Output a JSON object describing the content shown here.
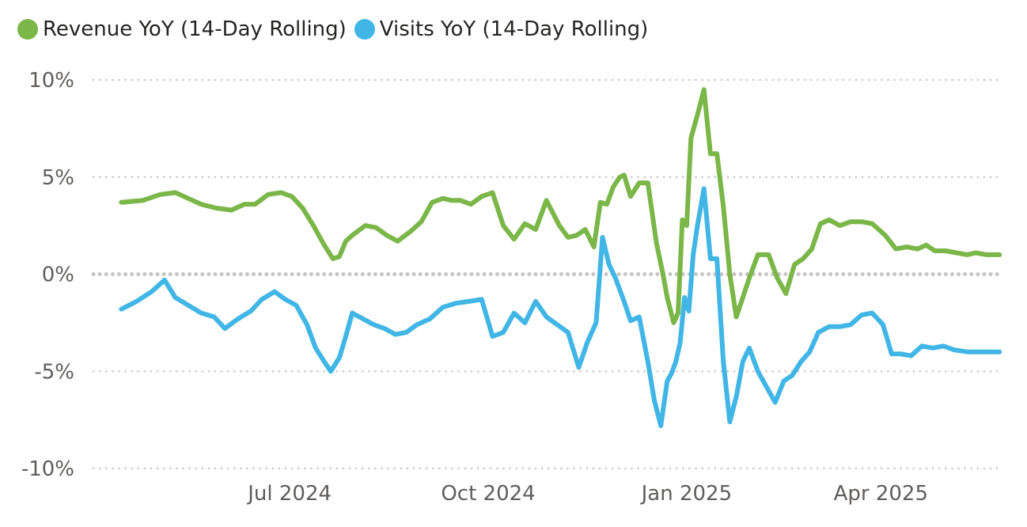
{
  "chart_data": {
    "type": "line",
    "title": "",
    "xlabel": "",
    "ylabel": "",
    "ylim": [
      -10,
      10
    ],
    "yticks": [
      10,
      5,
      0,
      -5,
      -10
    ],
    "ytick_labels": [
      "10%",
      "5%",
      "0%",
      "-5%",
      "-10%"
    ],
    "xlim": [
      "2024-04-01",
      "2025-05-27"
    ],
    "xticks": [
      "2024-07-01",
      "2024-10-01",
      "2025-01-01",
      "2025-04-01"
    ],
    "xtick_labels": [
      "Jul 2024",
      "Oct 2024",
      "Jan 2025",
      "Apr 2025"
    ],
    "grid": true,
    "legend_position": "top-left",
    "series": [
      {
        "name": "Revenue YoY (14-Day Rolling)",
        "color": "#7AB648",
        "x": [
          "2024-04-14",
          "2024-04-24",
          "2024-05-02",
          "2024-05-09",
          "2024-05-15",
          "2024-05-21",
          "2024-05-28",
          "2024-06-04",
          "2024-06-10",
          "2024-06-15",
          "2024-06-21",
          "2024-06-27",
          "2024-07-02",
          "2024-07-07",
          "2024-07-12",
          "2024-07-17",
          "2024-07-21",
          "2024-07-24",
          "2024-07-27",
          "2024-07-30",
          "2024-08-05",
          "2024-08-10",
          "2024-08-15",
          "2024-08-20",
          "2024-08-26",
          "2024-08-31",
          "2024-09-05",
          "2024-09-10",
          "2024-09-14",
          "2024-09-18",
          "2024-09-23",
          "2024-09-28",
          "2024-10-03",
          "2024-10-08",
          "2024-10-13",
          "2024-10-18",
          "2024-10-23",
          "2024-10-28",
          "2024-11-03",
          "2024-11-07",
          "2024-11-11",
          "2024-11-15",
          "2024-11-19",
          "2024-11-22",
          "2024-11-25",
          "2024-11-28",
          "2024-12-01",
          "2024-12-03",
          "2024-12-06",
          "2024-12-10",
          "2024-12-14",
          "2024-12-18",
          "2024-12-21",
          "2024-12-23",
          "2024-12-26",
          "2024-12-28",
          "2024-12-30",
          "2025-01-01",
          "2025-01-03",
          "2025-01-06",
          "2025-01-09",
          "2025-01-12",
          "2025-01-15",
          "2025-01-18",
          "2025-01-21",
          "2025-01-24",
          "2025-01-27",
          "2025-01-30",
          "2025-02-03",
          "2025-02-08",
          "2025-02-12",
          "2025-02-16",
          "2025-02-20",
          "2025-02-24",
          "2025-02-28",
          "2025-03-04",
          "2025-03-08",
          "2025-03-13",
          "2025-03-18",
          "2025-03-23",
          "2025-03-28",
          "2025-04-03",
          "2025-04-08",
          "2025-04-13",
          "2025-04-18",
          "2025-04-22",
          "2025-04-26",
          "2025-05-01",
          "2025-05-06",
          "2025-05-11",
          "2025-05-15",
          "2025-05-20",
          "2025-05-26"
        ],
        "values": [
          3.7,
          3.8,
          4.1,
          4.2,
          3.9,
          3.6,
          3.4,
          3.3,
          3.6,
          3.6,
          4.1,
          4.2,
          4.0,
          3.4,
          2.5,
          1.5,
          0.8,
          0.9,
          1.7,
          2.0,
          2.5,
          2.4,
          2.0,
          1.7,
          2.2,
          2.7,
          3.7,
          3.9,
          3.8,
          3.8,
          3.6,
          4.0,
          4.2,
          2.5,
          1.8,
          2.6,
          2.3,
          3.8,
          2.5,
          1.9,
          2.0,
          2.3,
          1.4,
          3.7,
          3.6,
          4.5,
          5.0,
          5.1,
          4.0,
          4.7,
          4.7,
          1.6,
          0.0,
          -1.2,
          -2.5,
          -2.0,
          2.8,
          2.5,
          7.0,
          8.2,
          9.5,
          6.2,
          6.2,
          3.5,
          0.0,
          -2.2,
          -1.2,
          -0.2,
          1.0,
          1.0,
          -0.2,
          -1.0,
          0.5,
          0.8,
          1.3,
          2.6,
          2.8,
          2.5,
          2.7,
          2.7,
          2.6,
          2.0,
          1.3,
          1.4,
          1.3,
          1.5,
          1.2,
          1.2,
          1.1,
          1.0,
          1.1,
          1.0,
          1.0
        ]
      },
      {
        "name": "Visits YoY (14-Day Rolling)",
        "color": "#41B6E6",
        "x": [
          "2024-04-14",
          "2024-04-21",
          "2024-04-28",
          "2024-05-04",
          "2024-05-09",
          "2024-05-15",
          "2024-05-21",
          "2024-05-27",
          "2024-06-01",
          "2024-06-07",
          "2024-06-13",
          "2024-06-18",
          "2024-06-24",
          "2024-06-29",
          "2024-07-04",
          "2024-07-09",
          "2024-07-13",
          "2024-07-17",
          "2024-07-20",
          "2024-07-24",
          "2024-07-27",
          "2024-07-30",
          "2024-08-04",
          "2024-08-09",
          "2024-08-14",
          "2024-08-19",
          "2024-08-24",
          "2024-08-29",
          "2024-09-04",
          "2024-09-10",
          "2024-09-16",
          "2024-09-22",
          "2024-09-28",
          "2024-10-03",
          "2024-10-08",
          "2024-10-13",
          "2024-10-18",
          "2024-10-23",
          "2024-10-28",
          "2024-11-02",
          "2024-11-07",
          "2024-11-12",
          "2024-11-16",
          "2024-11-20",
          "2024-11-23",
          "2024-11-26",
          "2024-11-29",
          "2024-12-01",
          "2024-12-03",
          "2024-12-06",
          "2024-12-10",
          "2024-12-14",
          "2024-12-17",
          "2024-12-20",
          "2024-12-23",
          "2024-12-25",
          "2024-12-27",
          "2024-12-29",
          "2024-12-31",
          "2025-01-02",
          "2025-01-04",
          "2025-01-06",
          "2025-01-09",
          "2025-01-12",
          "2025-01-15",
          "2025-01-18",
          "2025-01-21",
          "2025-01-24",
          "2025-01-27",
          "2025-01-30",
          "2025-02-03",
          "2025-02-07",
          "2025-02-11",
          "2025-02-15",
          "2025-02-19",
          "2025-02-23",
          "2025-02-27",
          "2025-03-03",
          "2025-03-08",
          "2025-03-13",
          "2025-03-18",
          "2025-03-23",
          "2025-03-28",
          "2025-04-02",
          "2025-04-06",
          "2025-04-10",
          "2025-04-15",
          "2025-04-20",
          "2025-04-25",
          "2025-04-30",
          "2025-05-05",
          "2025-05-11",
          "2025-05-16",
          "2025-05-21",
          "2025-05-26"
        ],
        "values": [
          -1.8,
          -1.4,
          -0.9,
          -0.3,
          -1.2,
          -1.6,
          -2.0,
          -2.2,
          -2.8,
          -2.3,
          -1.9,
          -1.3,
          -0.9,
          -1.3,
          -1.6,
          -2.6,
          -3.8,
          -4.5,
          -5.0,
          -4.3,
          -3.2,
          -2.0,
          -2.3,
          -2.6,
          -2.8,
          -3.1,
          -3.0,
          -2.6,
          -2.3,
          -1.7,
          -1.5,
          -1.4,
          -1.3,
          -3.2,
          -3.0,
          -2.0,
          -2.5,
          -1.4,
          -2.2,
          -2.6,
          -3.0,
          -4.8,
          -3.5,
          -2.5,
          1.9,
          0.5,
          -0.2,
          -0.8,
          -1.4,
          -2.4,
          -2.2,
          -4.5,
          -6.5,
          -7.8,
          -5.5,
          -5.1,
          -4.5,
          -3.5,
          -1.2,
          -1.9,
          1.0,
          2.5,
          4.4,
          0.8,
          0.8,
          -4.5,
          -7.6,
          -6.3,
          -4.5,
          -3.8,
          -5.0,
          -5.8,
          -6.6,
          -5.5,
          -5.2,
          -4.5,
          -4.0,
          -3.0,
          -2.7,
          -2.7,
          -2.6,
          -2.1,
          -2.0,
          -2.6,
          -4.1,
          -4.1,
          -4.2,
          -3.7,
          -3.8,
          -3.7,
          -3.9,
          -4.0,
          -4.0,
          -4.0,
          -4.0
        ]
      }
    ]
  }
}
